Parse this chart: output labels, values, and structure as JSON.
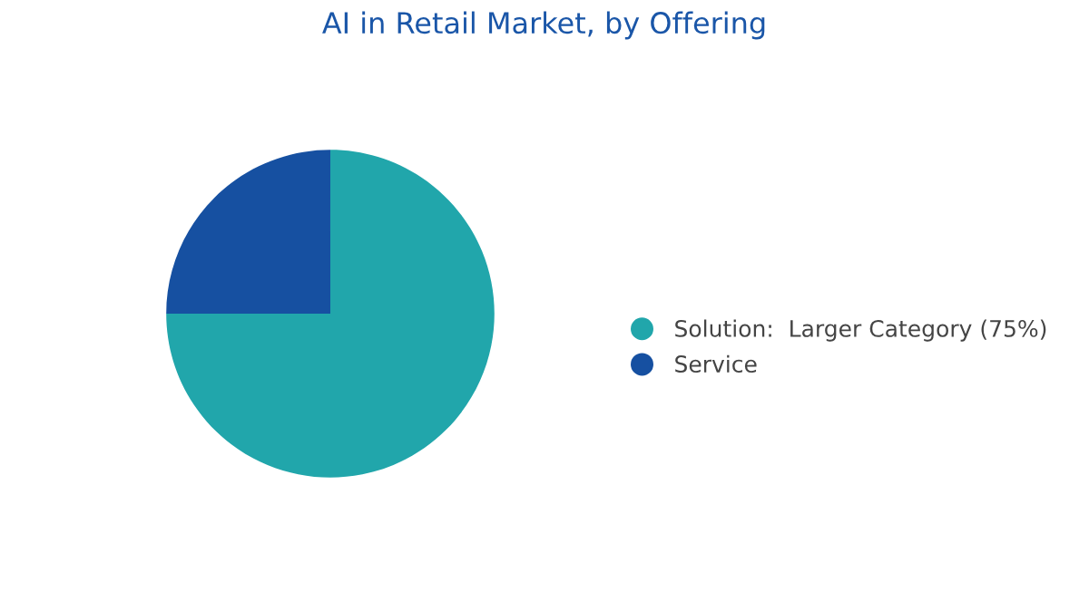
{
  "chart_data": {
    "type": "pie",
    "title": "AI in Retail Market, by Offering",
    "categories": [
      "Solution:  Larger Category (75%)",
      "Service"
    ],
    "values": [
      75,
      25
    ],
    "colors": [
      "#21a6ab",
      "#1650a1"
    ],
    "legend": "right"
  }
}
